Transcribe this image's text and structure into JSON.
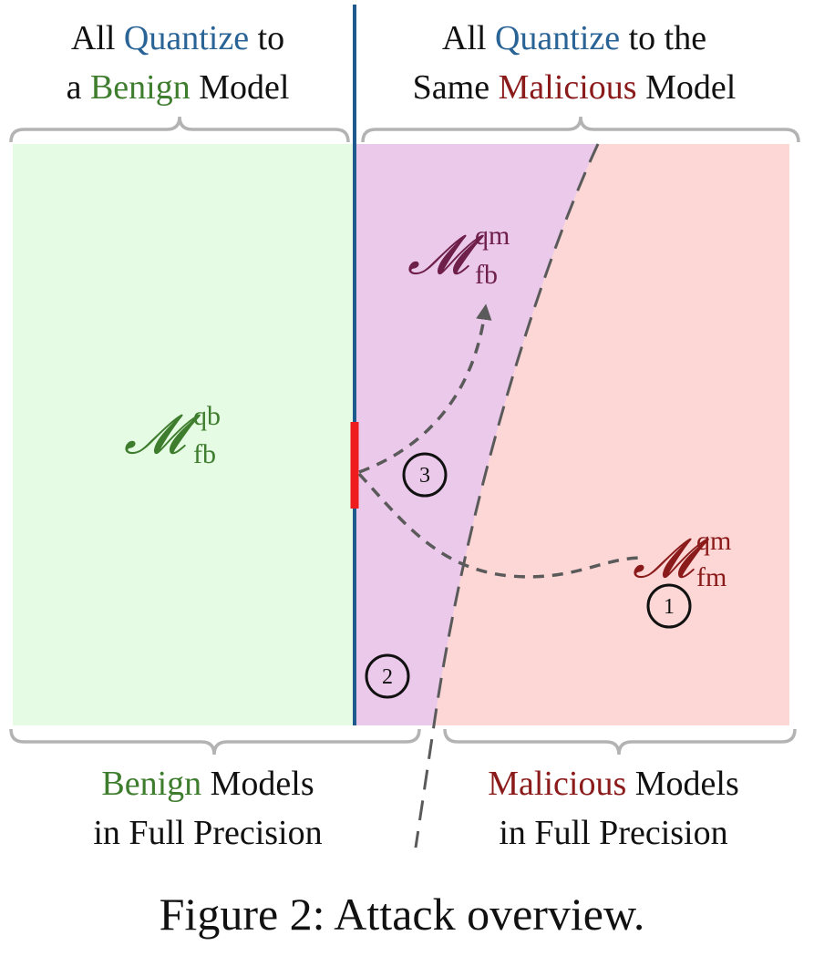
{
  "header": {
    "left": {
      "line1": [
        {
          "text": "All ",
          "color": "#111111"
        },
        {
          "text": "Quantize",
          "color": "#2a6496"
        },
        {
          "text": " to",
          "color": "#111111"
        }
      ],
      "line2": [
        {
          "text": "a ",
          "color": "#111111"
        },
        {
          "text": "Benign",
          "color": "#3f7d2e"
        },
        {
          "text": " Model",
          "color": "#111111"
        }
      ]
    },
    "right": {
      "line1": [
        {
          "text": "All ",
          "color": "#111111"
        },
        {
          "text": "Quantize",
          "color": "#2a6496"
        },
        {
          "text": " to the",
          "color": "#111111"
        }
      ],
      "line2": [
        {
          "text": "Same ",
          "color": "#111111"
        },
        {
          "text": "Malicious",
          "color": "#8b1a1a"
        },
        {
          "text": " Model",
          "color": "#111111"
        }
      ]
    }
  },
  "footer": {
    "left": {
      "line1": [
        {
          "text": "Benign",
          "color": "#3f7d2e"
        },
        {
          "text": " Models",
          "color": "#111111"
        }
      ],
      "line2": [
        {
          "text": "in Full Precision",
          "color": "#111111"
        }
      ]
    },
    "right": {
      "line1": [
        {
          "text": "Malicious",
          "color": "#8b1a1a"
        },
        {
          "text": " Models",
          "color": "#111111"
        }
      ],
      "line2": [
        {
          "text": "in Full Precision",
          "color": "#111111"
        }
      ]
    }
  },
  "labels": {
    "m_fb_qb": {
      "symbol": "𝓜",
      "sub": "fb",
      "sup": "qb",
      "color": "#3f7d2e"
    },
    "m_fb_qm": {
      "symbol": "𝓜",
      "sub": "fb",
      "sup": "qm",
      "color": "#6e1f4a"
    },
    "m_fm_qm": {
      "symbol": "𝓜",
      "sub": "fm",
      "sup": "qm",
      "color": "#8b1a1a"
    }
  },
  "steps": {
    "step1": "1",
    "step2": "2",
    "step3": "3"
  },
  "caption": "Figure 2: Attack overview.",
  "colors": {
    "benign_region": "#e6fbe4",
    "purple_region": "#ebc9ea",
    "malicious_region": "#fcd7d6",
    "divider": "#1f5a8f",
    "highlight": "#ee1c1c",
    "dashed": "#5a5a5a",
    "brace": "#b3b3b3"
  }
}
